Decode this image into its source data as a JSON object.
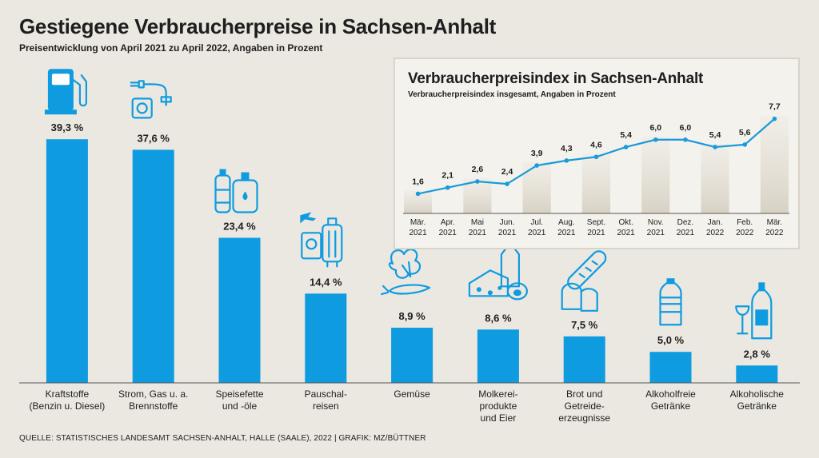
{
  "title": "Gestiegene Verbraucherpreise in Sachsen-Anhalt",
  "subtitle": "Preisentwicklung von April 2021 zu April 2022, Angaben in Prozent",
  "source": "QUELLE: STATISTISCHES LANDESAMT SACHSEN-ANHALT, HALLE (SAALE), 2022 | GRAFIK: MZ/BÜTTNER",
  "colors": {
    "bar": "#0f9be0",
    "icon": "#0f9be0",
    "line": "#1a9ad9",
    "background": "#ebe8e1"
  },
  "chart_data": [
    {
      "type": "bar",
      "title": "Gestiegene Verbraucherpreise in Sachsen-Anhalt",
      "ylabel": "Prozent",
      "ylim": [
        0,
        45
      ],
      "categories": [
        [
          "Kraftstoffe",
          "(Benzin u. Diesel)"
        ],
        [
          "Strom, Gas u. a.",
          "Brennstoffe"
        ],
        [
          "Speisefette",
          "und -öle"
        ],
        [
          "Pauschal-",
          "reisen"
        ],
        [
          "Gemüse"
        ],
        [
          "Molkerei-",
          "produkte",
          "und Eier"
        ],
        [
          "Brot und",
          "Getreide-",
          "erzeugnisse"
        ],
        [
          "Alkoholfreie",
          "Getränke"
        ],
        [
          "Alkoholische",
          "Getränke"
        ]
      ],
      "values": [
        39.3,
        37.6,
        23.4,
        14.4,
        8.9,
        8.6,
        7.5,
        5.0,
        2.8
      ],
      "value_labels": [
        "39,3 %",
        "37,6 %",
        "23,4 %",
        "14,4 %",
        "8,9 %",
        "8,6 %",
        "7,5 %",
        "5,0 %",
        "2,8 %"
      ],
      "icons": [
        "fuel-pump-icon",
        "power-plug-icon",
        "oil-bottles-icon",
        "travel-icon",
        "vegetables-icon",
        "dairy-icon",
        "bread-icon",
        "water-bottle-icon",
        "wine-icon"
      ]
    },
    {
      "type": "line",
      "title": "Verbraucherpreisindex in Sachsen-Anhalt",
      "subtitle": "Verbraucherpreisindex insgesamt, Angaben in Prozent",
      "ylim": [
        0,
        8
      ],
      "x": [
        [
          "Mär.",
          "2021"
        ],
        [
          "Apr.",
          "2021"
        ],
        [
          "Mai",
          "2021"
        ],
        [
          "Jun.",
          "2021"
        ],
        [
          "Jul.",
          "2021"
        ],
        [
          "Aug.",
          "2021"
        ],
        [
          "Sept.",
          "2021"
        ],
        [
          "Okt.",
          "2021"
        ],
        [
          "Nov.",
          "2021"
        ],
        [
          "Dez.",
          "2021"
        ],
        [
          "Jan.",
          "2022"
        ],
        [
          "Feb.",
          "2022"
        ],
        [
          "Mär.",
          "2022"
        ]
      ],
      "values": [
        1.6,
        2.1,
        2.6,
        2.4,
        3.9,
        4.3,
        4.6,
        5.4,
        6.0,
        6.0,
        5.4,
        5.6,
        7.7
      ],
      "value_labels": [
        "1,6",
        "2,1",
        "2,6",
        "2,4",
        "3,9",
        "4,3",
        "4,6",
        "5,4",
        "6,0",
        "6,0",
        "5,4",
        "5,6",
        "7,7"
      ]
    }
  ]
}
